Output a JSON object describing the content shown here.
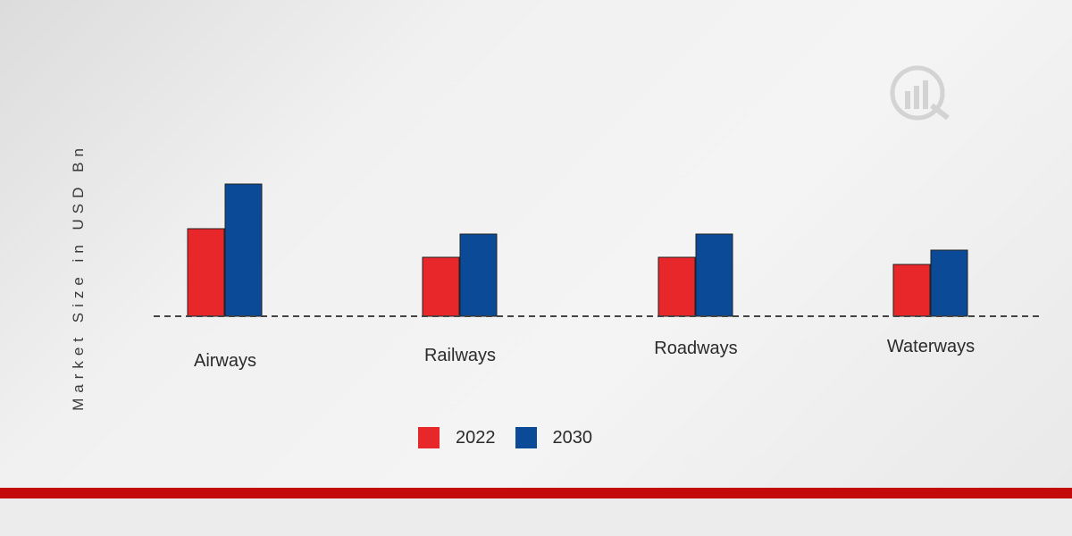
{
  "chart_data": {
    "type": "bar",
    "categories": [
      "Airways",
      "Railways",
      "Roadways",
      "Waterways"
    ],
    "series": [
      {
        "name": "2022",
        "values": [
          98,
          66,
          66,
          58
        ],
        "color": "#e8272a"
      },
      {
        "name": "2030",
        "values": [
          148,
          92,
          92,
          74
        ],
        "color": "#0b4a96"
      }
    ],
    "ylabel": "Market Size in USD Bn",
    "xlabel": "",
    "ylim": [
      0,
      190
    ],
    "grid": false,
    "legend": "bottom-center"
  },
  "colors": {
    "footer_accent": "#c40b0b",
    "baseline": "#444444"
  },
  "icons": {
    "watermark": "logo-watermark-icon"
  }
}
